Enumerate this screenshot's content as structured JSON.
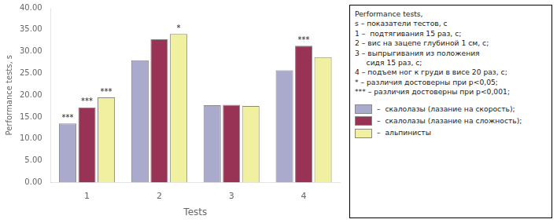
{
  "chart_data": {
    "type": "bar",
    "xlabel": "Tests",
    "ylabel": "Performance tests, s",
    "categories": [
      "1",
      "2",
      "3",
      "4"
    ],
    "series": [
      {
        "name": "–  скалолазы (лазание на скорость);",
        "color": "#AAAACC",
        "values": [
          13.5,
          28.0,
          17.7,
          25.7
        ]
      },
      {
        "name": "–  скалолазы (лазание на сложность);",
        "color": "#993355",
        "values": [
          17.2,
          32.8,
          17.8,
          31.3
        ]
      },
      {
        "name": "–  альпинисты",
        "color": "#F0F0A0",
        "values": [
          19.5,
          34.0,
          17.5,
          28.7
        ]
      }
    ],
    "ylim": [
      0,
      40
    ],
    "yticks": [
      {
        "value": 0,
        "label": "0.00"
      },
      {
        "value": 5,
        "label": "5.00"
      },
      {
        "value": 10,
        "label": "10.00"
      },
      {
        "value": 15,
        "label": "15.00"
      },
      {
        "value": 20,
        "label": "20.00"
      },
      {
        "value": 25,
        "label": "25.00"
      },
      {
        "value": 30,
        "label": "30.00"
      },
      {
        "value": 35,
        "label": "35.00"
      },
      {
        "value": 40,
        "label": "40.00"
      }
    ],
    "annotations": [
      {
        "text": "***",
        "category": "1",
        "series": "–  скалолазы (лазание на скорость);"
      },
      {
        "text": "***",
        "category": "1",
        "series": "–  скалолазы (лазание на сложность);"
      },
      {
        "text": "***",
        "category": "1",
        "series": "–  альпинисты"
      },
      {
        "text": "*",
        "category": "2",
        "series": "–  альпинисты"
      },
      {
        "text": "***",
        "category": "4",
        "series": "–  скалолазы (лазание на сложность);"
      }
    ],
    "legend_text": [
      "Performance tests,",
      "s – показатели тестов, с",
      "1 –  подтягивания 15 раз, с;",
      "2 – вис на зацепе глубиной 1 см, с;",
      "3 – выпрыгивания из положения",
      "     сидя 15 раз, с;",
      "4 – подъем ног к груди в висе 20 раз, с;",
      "* – различия достоверны при p<0,05;",
      "*** – различия достоверны при p<0,001;"
    ],
    "legend": "right",
    "grid": false
  }
}
